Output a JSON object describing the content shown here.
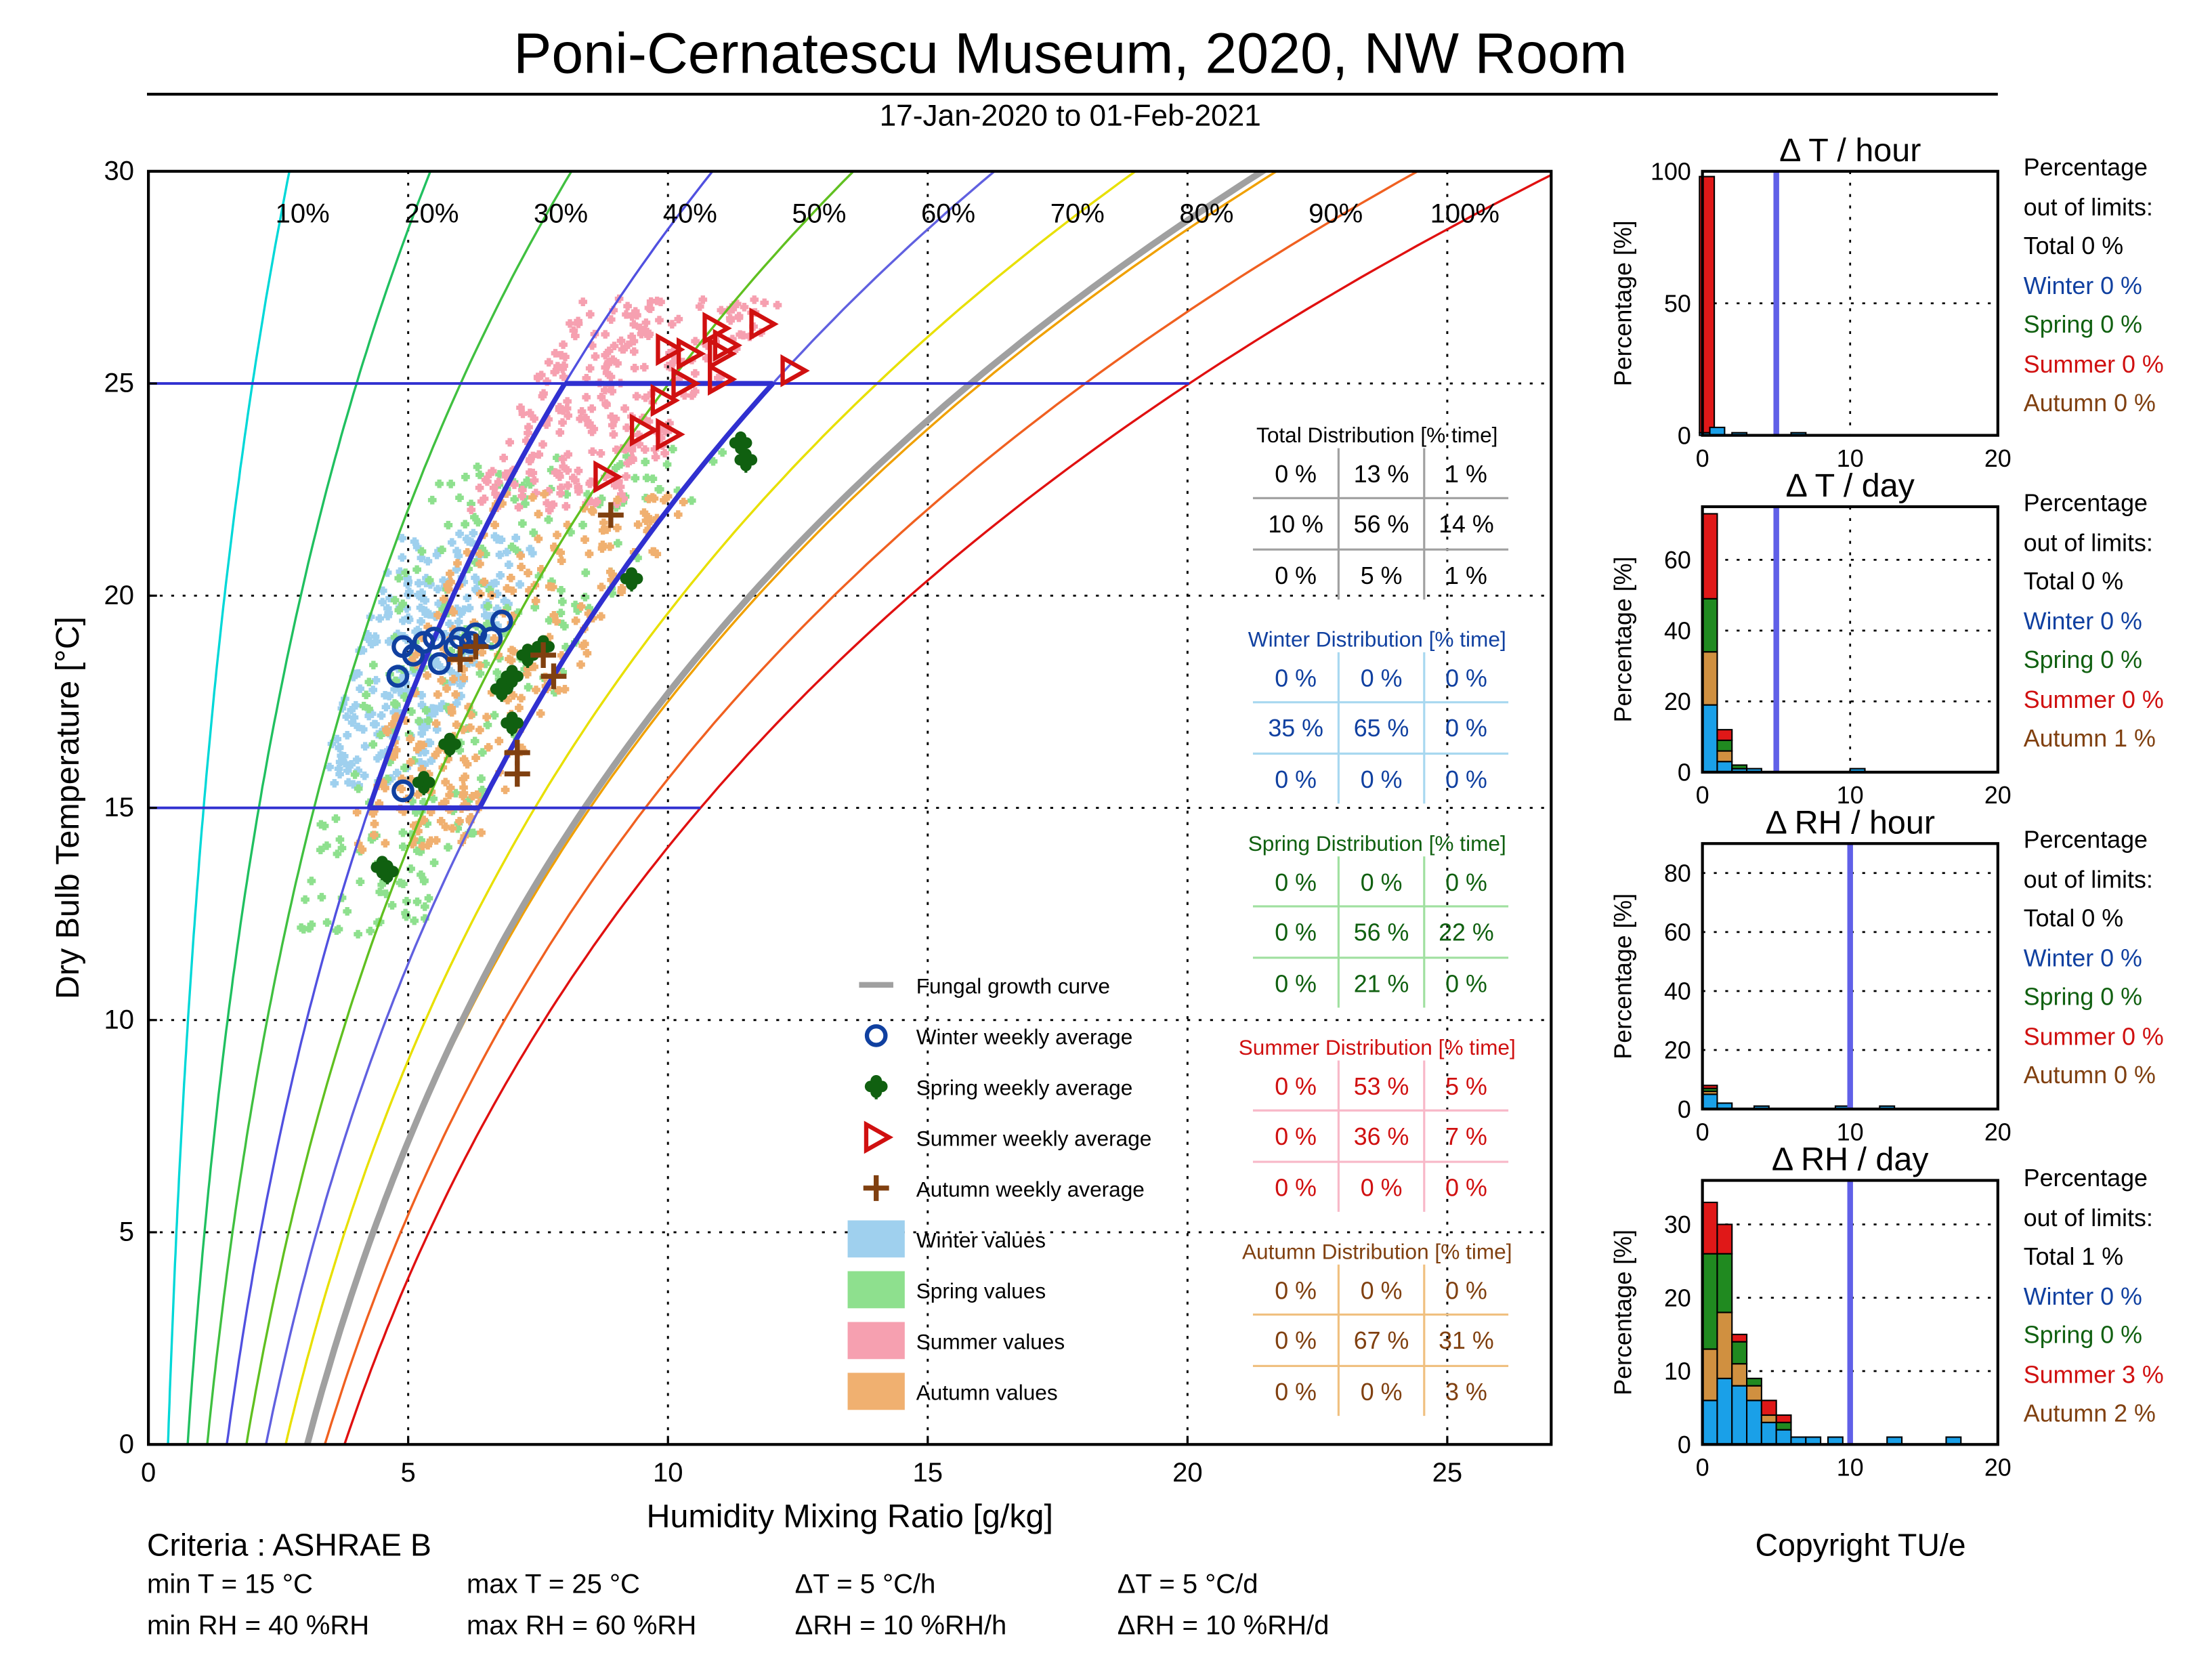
{
  "header": {
    "title": "Poni-Cernatescu Museum, 2020, NW Room",
    "subtitle": "17-Jan-2020 to 01-Feb-2021"
  },
  "colors": {
    "winter": "#1040a0",
    "spring": "#106010",
    "summer": "#d01010",
    "autumn": "#804010",
    "winter_fill": "#9fd0ee",
    "spring_fill": "#8ee08e",
    "summer_fill": "#f6a0b0",
    "autumn_fill": "#f0b070",
    "limit_line": "#3030d0",
    "fungal": "#a0a0a0"
  },
  "chart_data": [
    {
      "type": "scatter",
      "id": "psychrometric",
      "xlabel": "Humidity Mixing Ratio [g/kg]",
      "ylabel": "Dry Bulb Temperature [°C]",
      "xlim": [
        0,
        27
      ],
      "ylim": [
        0,
        30
      ],
      "xticks": [
        0,
        5,
        10,
        15,
        20,
        25
      ],
      "yticks": [
        0,
        5,
        10,
        15,
        20,
        25,
        30
      ],
      "grid": true,
      "rh_curves": [
        {
          "label": "10%",
          "rh": 10,
          "color": "#00d8d8"
        },
        {
          "label": "20%",
          "rh": 20,
          "color": "#20c060"
        },
        {
          "label": "30%",
          "rh": 30,
          "color": "#40c040"
        },
        {
          "label": "40%",
          "rh": 40,
          "color": "#5050e0"
        },
        {
          "label": "50%",
          "rh": 50,
          "color": "#60c020"
        },
        {
          "label": "60%",
          "rh": 60,
          "color": "#6060e0"
        },
        {
          "label": "70%",
          "rh": 70,
          "color": "#e8e000"
        },
        {
          "label": "80%",
          "rh": 80,
          "color": "#f0a000"
        },
        {
          "label": "90%",
          "rh": 90,
          "color": "#f06020"
        },
        {
          "label": "100%",
          "rh": 100,
          "color": "#e01010"
        }
      ],
      "limits": {
        "t_min": 15,
        "t_max": 25,
        "rh_min": 40,
        "rh_max": 60
      },
      "series": [
        {
          "name": "Winter weekly average",
          "marker": "circle",
          "points": [
            [
              4.9,
              18.8
            ],
            [
              4.8,
              18.1
            ],
            [
              5.3,
              18.9
            ],
            [
              5.6,
              18.4
            ],
            [
              5.9,
              18.8
            ],
            [
              6.0,
              19.0
            ],
            [
              6.3,
              19.1
            ],
            [
              6.6,
              19.0
            ],
            [
              6.8,
              19.4
            ],
            [
              5.1,
              18.6
            ],
            [
              5.5,
              19.0
            ],
            [
              4.9,
              15.4
            ],
            [
              6.2,
              18.9
            ]
          ]
        },
        {
          "name": "Spring weekly average",
          "marker": "clover",
          "points": [
            [
              4.5,
              13.6
            ],
            [
              4.6,
              13.5
            ],
            [
              5.3,
              15.6
            ],
            [
              5.8,
              16.5
            ],
            [
              6.8,
              17.8
            ],
            [
              7.0,
              18.1
            ],
            [
              7.3,
              18.6
            ],
            [
              7.6,
              18.8
            ],
            [
              9.3,
              20.4
            ],
            [
              11.4,
              23.6
            ],
            [
              11.5,
              23.2
            ],
            [
              7.0,
              17.0
            ]
          ]
        },
        {
          "name": "Summer weekly average",
          "marker": "triangle",
          "points": [
            [
              8.8,
              22.8
            ],
            [
              9.5,
              23.9
            ],
            [
              10.0,
              23.8
            ],
            [
              9.9,
              24.6
            ],
            [
              10.3,
              25.0
            ],
            [
              10.0,
              25.8
            ],
            [
              10.4,
              25.7
            ],
            [
              11.0,
              25.7
            ],
            [
              11.0,
              25.1
            ],
            [
              12.4,
              25.3
            ],
            [
              10.9,
              26.3
            ],
            [
              11.8,
              26.4
            ],
            [
              11.1,
              25.9
            ]
          ]
        },
        {
          "name": "Autumn weekly average",
          "marker": "plus",
          "points": [
            [
              8.9,
              21.9
            ],
            [
              7.6,
              18.6
            ],
            [
              7.8,
              18.1
            ],
            [
              7.1,
              16.3
            ],
            [
              7.1,
              15.8
            ],
            [
              6.3,
              18.8
            ],
            [
              6.0,
              18.5
            ]
          ]
        }
      ],
      "value_clouds": [
        {
          "name": "Winter values",
          "rh_range": [
            30,
            48
          ],
          "t_range": [
            15.5,
            21.5
          ]
        },
        {
          "name": "Spring values",
          "rh_range": [
            32,
            62
          ],
          "t_range": [
            12.0,
            23.5
          ]
        },
        {
          "name": "Summer values",
          "rh_range": [
            37,
            55
          ],
          "t_range": [
            22.0,
            27.0
          ]
        },
        {
          "name": "Autumn values",
          "rh_range": [
            38,
            63
          ],
          "t_range": [
            14.0,
            22.5
          ]
        }
      ],
      "legend": [
        {
          "label": "Fungal growth curve",
          "kind": "line"
        },
        {
          "label": "Winter weekly average",
          "kind": "circle"
        },
        {
          "label": "Spring weekly average",
          "kind": "clover"
        },
        {
          "label": "Summer weekly average",
          "kind": "triangle"
        },
        {
          "label": "Autumn weekly average",
          "kind": "plus"
        },
        {
          "label": "Winter values",
          "kind": "swatch",
          "season": "winter"
        },
        {
          "label": "Spring values",
          "kind": "swatch",
          "season": "spring"
        },
        {
          "label": "Summer values",
          "kind": "swatch",
          "season": "summer"
        },
        {
          "label": "Autumn values",
          "kind": "swatch",
          "season": "autumn"
        }
      ],
      "distribution_tables": [
        {
          "title": "Total Distribution [% time]",
          "season": "total",
          "cells": [
            [
              "0 %",
              "13 %",
              "1 %"
            ],
            [
              "10 %",
              "56 %",
              "14 %"
            ],
            [
              "0 %",
              "5 %",
              "1 %"
            ]
          ]
        },
        {
          "title": "Winter Distribution [% time]",
          "season": "winter",
          "cells": [
            [
              "0 %",
              "0 %",
              "0 %"
            ],
            [
              "35 %",
              "65 %",
              "0 %"
            ],
            [
              "0 %",
              "0 %",
              "0 %"
            ]
          ]
        },
        {
          "title": "Spring Distribution [% time]",
          "season": "spring",
          "cells": [
            [
              "0 %",
              "0 %",
              "0 %"
            ],
            [
              "0 %",
              "56 %",
              "22 %"
            ],
            [
              "0 %",
              "21 %",
              "0 %"
            ]
          ]
        },
        {
          "title": "Summer Distribution [% time]",
          "season": "summer",
          "cells": [
            [
              "0 %",
              "53 %",
              "5 %"
            ],
            [
              "0 %",
              "36 %",
              "7 %"
            ],
            [
              "0 %",
              "0 %",
              "0 %"
            ]
          ]
        },
        {
          "title": "Autumn Distribution [% time]",
          "season": "autumn",
          "cells": [
            [
              "0 %",
              "0 %",
              "0 %"
            ],
            [
              "0 %",
              "67 %",
              "31 %"
            ],
            [
              "0 %",
              "0 %",
              "3 %"
            ]
          ]
        }
      ]
    },
    {
      "type": "bar",
      "id": "dt_hour",
      "title": "Δ T / hour",
      "ylabel": "Percentage [%]",
      "xlim": [
        0,
        20
      ],
      "ylim": [
        0,
        100
      ],
      "xticks": [
        0,
        10,
        20
      ],
      "yticks": [
        0,
        50,
        100
      ],
      "limit_x": 5,
      "bars": [
        [
          0.3,
          {
            "winter": 1,
            "spring": 0,
            "autumn": 0,
            "summer": 97
          }
        ],
        [
          1.0,
          {
            "winter": 3,
            "spring": 0,
            "autumn": 0,
            "summer": 0
          }
        ],
        [
          2.5,
          {
            "winter": 1,
            "spring": 0,
            "autumn": 0,
            "summer": 0
          }
        ],
        [
          6.5,
          {
            "winter": 1,
            "spring": 0,
            "autumn": 0,
            "summer": 0
          }
        ]
      ],
      "out_of_limits": {
        "total": "Total 0 %",
        "winter": "Winter 0 %",
        "spring": "Spring 0 %",
        "summer": "Summer 0 %",
        "autumn": "Autumn 0 %"
      }
    },
    {
      "type": "bar",
      "id": "dt_day",
      "title": "Δ T / day",
      "ylabel": "Percentage [%]",
      "xlim": [
        0,
        20
      ],
      "ylim": [
        0,
        75
      ],
      "xticks": [
        0,
        10,
        20
      ],
      "yticks": [
        0,
        20,
        40,
        60
      ],
      "limit_x": 5,
      "bars": [
        [
          0.5,
          {
            "winter": 19,
            "autumn": 15,
            "spring": 15,
            "summer": 24
          }
        ],
        [
          1.5,
          {
            "winter": 3,
            "autumn": 3,
            "spring": 3,
            "summer": 3
          }
        ],
        [
          2.5,
          {
            "winter": 1,
            "autumn": 0,
            "spring": 1,
            "summer": 0
          }
        ],
        [
          3.5,
          {
            "winter": 1,
            "autumn": 0,
            "spring": 0,
            "summer": 0
          }
        ],
        [
          10.5,
          {
            "winter": 1,
            "autumn": 0,
            "spring": 0,
            "summer": 0
          }
        ]
      ],
      "out_of_limits": {
        "total": "Total 0 %",
        "winter": "Winter 0 %",
        "spring": "Spring 0 %",
        "summer": "Summer 0 %",
        "autumn": "Autumn 1 %"
      }
    },
    {
      "type": "bar",
      "id": "drh_hour",
      "title": "Δ RH / hour",
      "ylabel": "Percentage [%]",
      "xlim": [
        0,
        20
      ],
      "ylim": [
        0,
        90
      ],
      "xticks": [
        0,
        10,
        20
      ],
      "yticks": [
        0,
        20,
        40,
        60,
        80
      ],
      "limit_x": 10,
      "bars": [
        [
          0.5,
          {
            "winter": 5,
            "autumn": 1,
            "spring": 1,
            "summer": 1
          }
        ],
        [
          1.5,
          {
            "winter": 2,
            "autumn": 0,
            "spring": 0,
            "summer": 0
          }
        ],
        [
          4.0,
          {
            "winter": 1,
            "autumn": 0,
            "spring": 0,
            "summer": 0
          }
        ],
        [
          9.5,
          {
            "winter": 1,
            "autumn": 0,
            "spring": 0,
            "summer": 0
          }
        ],
        [
          12.5,
          {
            "winter": 1,
            "autumn": 0,
            "spring": 0,
            "summer": 0
          }
        ]
      ],
      "out_of_limits": {
        "total": "Total 0 %",
        "winter": "Winter 0 %",
        "spring": "Spring 0 %",
        "summer": "Summer 0 %",
        "autumn": "Autumn 0 %"
      }
    },
    {
      "type": "bar",
      "id": "drh_day",
      "title": "Δ RH / day",
      "ylabel": "Percentage [%]",
      "xlim": [
        0,
        20
      ],
      "ylim": [
        0,
        36
      ],
      "xticks": [
        0,
        10,
        20
      ],
      "yticks": [
        0,
        10,
        20,
        30
      ],
      "limit_x": 10,
      "bars": [
        [
          0.5,
          {
            "winter": 6,
            "autumn": 7,
            "spring": 13,
            "summer": 7
          }
        ],
        [
          1.5,
          {
            "winter": 9,
            "autumn": 9,
            "spring": 8,
            "summer": 4
          }
        ],
        [
          2.5,
          {
            "winter": 8,
            "autumn": 3,
            "spring": 3,
            "summer": 1
          }
        ],
        [
          3.5,
          {
            "winter": 6,
            "autumn": 2,
            "spring": 1,
            "summer": 0
          }
        ],
        [
          4.5,
          {
            "winter": 3,
            "autumn": 1,
            "spring": 0,
            "summer": 2
          }
        ],
        [
          5.5,
          {
            "winter": 2,
            "autumn": 0,
            "spring": 1,
            "summer": 1
          }
        ],
        [
          6.5,
          {
            "winter": 1,
            "autumn": 0,
            "spring": 0,
            "summer": 0
          }
        ],
        [
          7.5,
          {
            "winter": 1,
            "autumn": 0,
            "spring": 0,
            "summer": 0
          }
        ],
        [
          9.0,
          {
            "winter": 1,
            "autumn": 0,
            "spring": 0,
            "summer": 0
          }
        ],
        [
          13.0,
          {
            "winter": 1,
            "autumn": 0,
            "spring": 0,
            "summer": 0
          }
        ],
        [
          17.0,
          {
            "winter": 1,
            "autumn": 0,
            "spring": 0,
            "summer": 0
          }
        ]
      ],
      "out_of_limits": {
        "total": "Total 1 %",
        "winter": "Winter 0 %",
        "spring": "Spring 0 %",
        "summer": "Summer 3 %",
        "autumn": "Autumn 2 %"
      }
    }
  ],
  "out_of_limits_heading": [
    "Percentage",
    "out of limits:"
  ],
  "criteria": {
    "title": "Criteria : ASHRAE B",
    "min_t": "min T = 15 °C",
    "max_t": "max T = 25 °C",
    "dt_h": "ΔT = 5 °C/h",
    "dt_d": "ΔT = 5 °C/d",
    "min_rh": "min RH = 40 %RH",
    "max_rh": "max RH = 60 %RH",
    "drh_h": "ΔRH = 10 %RH/h",
    "drh_d": "ΔRH = 10 %RH/d"
  },
  "copyright": "Copyright TU/e"
}
